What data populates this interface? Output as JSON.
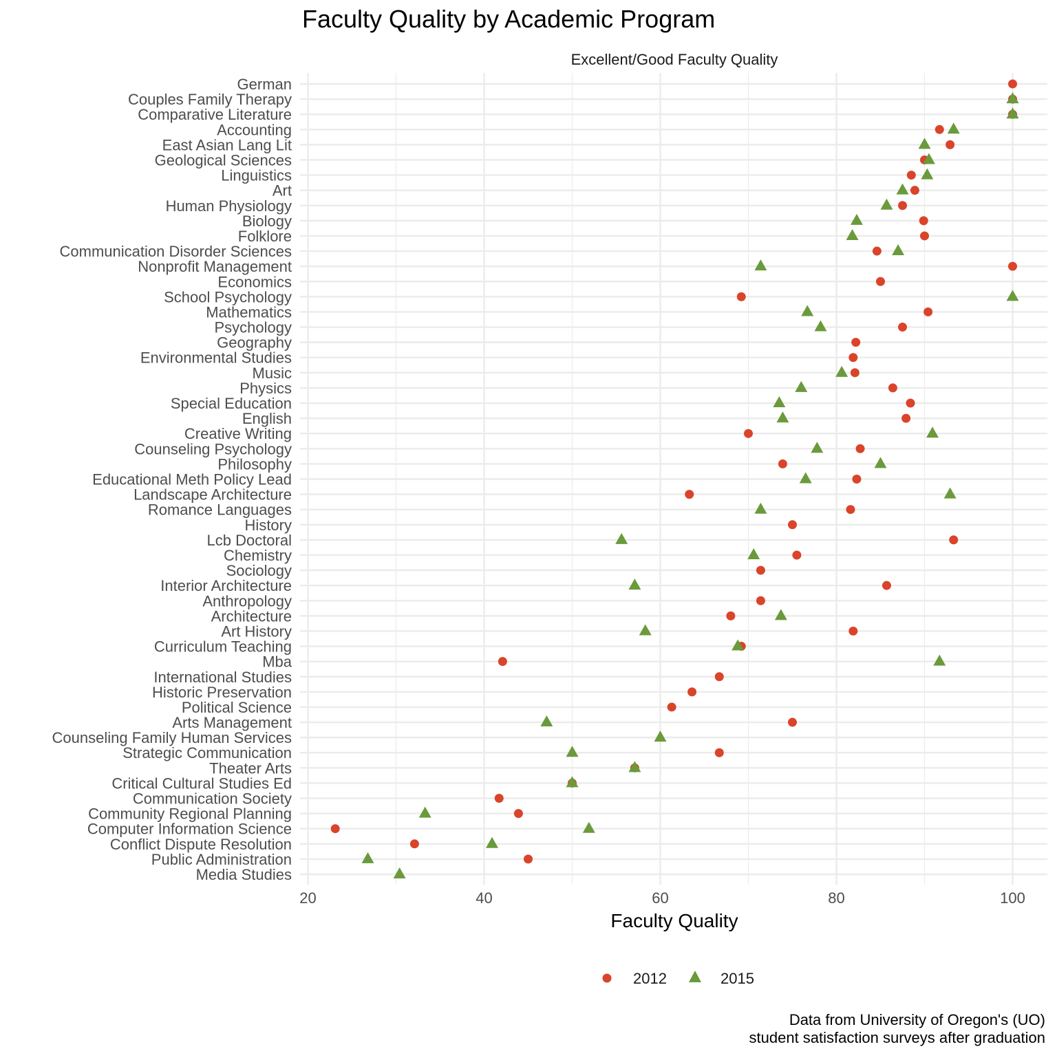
{
  "title": "Faculty Quality by Academic Program",
  "caption_lines": [
    "Data from University of Oregon's (UO)",
    "student satisfaction surveys after graduation"
  ],
  "colors": {
    "2012": "#d9442b",
    "2015": "#6a9a3c",
    "grid": "#ebebeb",
    "text": "#4d4d4d"
  },
  "chart_data": {
    "type": "scatter",
    "facet_label": "Excellent/Good Faculty Quality",
    "xlabel": "Faculty Quality",
    "ylabel": "",
    "xlim": [
      20,
      100
    ],
    "x_ticks": [
      20,
      40,
      60,
      80,
      100
    ],
    "grid": true,
    "legend_position": "bottom",
    "categories": [
      "German",
      "Couples Family Therapy",
      "Comparative Literature",
      "Accounting",
      "East Asian Lang Lit",
      "Geological Sciences",
      "Linguistics",
      "Art",
      "Human Physiology",
      "Biology",
      "Folklore",
      "Communication Disorder Sciences",
      "Nonprofit Management",
      "Economics",
      "School Psychology",
      "Mathematics",
      "Psychology",
      "Geography",
      "Environmental Studies",
      "Music",
      "Physics",
      "Special Education",
      "English",
      "Creative Writing",
      "Counseling Psychology",
      "Philosophy",
      "Educational Meth Policy Lead",
      "Landscape Architecture",
      "Romance Languages",
      "History",
      "Lcb Doctoral",
      "Chemistry",
      "Sociology",
      "Interior Architecture",
      "Anthropology",
      "Architecture",
      "Art History",
      "Curriculum Teaching",
      "Mba",
      "International Studies",
      "Historic Preservation",
      "Political Science",
      "Arts Management",
      "Counseling Family Human Services",
      "Strategic Communication",
      "Theater Arts",
      "Critical Cultural Studies Ed",
      "Communication Society",
      "Community Regional Planning",
      "Computer Information Science",
      "Conflict Dispute Resolution",
      "Public Administration",
      "Media Studies"
    ],
    "series": [
      {
        "name": "2012",
        "shape": "circle",
        "values": [
          100,
          100,
          100,
          91.7,
          92.9,
          90,
          88.5,
          88.9,
          87.5,
          89.9,
          90,
          84.6,
          100,
          85,
          69.2,
          90.4,
          87.5,
          82.2,
          81.9,
          82.1,
          86.4,
          88.4,
          87.9,
          70,
          82.7,
          73.9,
          82.3,
          63.3,
          81.6,
          75,
          93.3,
          75.5,
          71.4,
          85.7,
          71.4,
          68,
          81.9,
          69.2,
          42.1,
          66.7,
          63.6,
          61.3,
          75,
          null,
          66.7,
          57.1,
          50,
          41.7,
          43.9,
          23.1,
          32.1,
          45,
          null
        ]
      },
      {
        "name": "2015",
        "shape": "triangle",
        "values": [
          null,
          100,
          100,
          93.3,
          90,
          90.5,
          90.3,
          87.5,
          85.7,
          82.3,
          81.8,
          87,
          71.4,
          null,
          100,
          76.7,
          78.2,
          null,
          null,
          80.6,
          76,
          73.5,
          73.9,
          90.9,
          77.8,
          85,
          76.5,
          92.9,
          71.4,
          null,
          55.6,
          70.6,
          null,
          57.1,
          null,
          73.7,
          58.3,
          68.8,
          91.7,
          null,
          null,
          null,
          47.1,
          60,
          50,
          57.1,
          50,
          null,
          33.3,
          51.9,
          40.9,
          26.8,
          30.4
        ]
      }
    ]
  }
}
